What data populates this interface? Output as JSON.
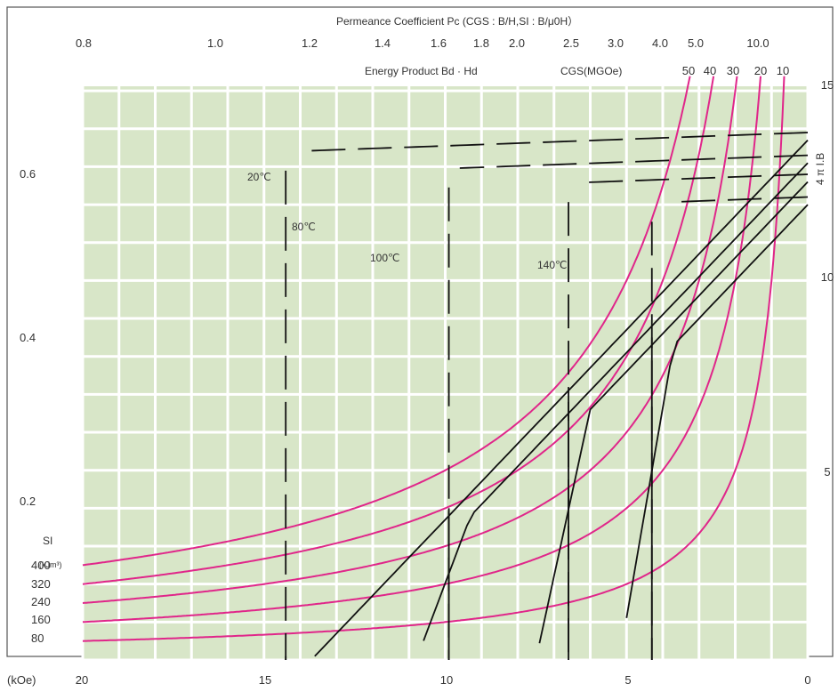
{
  "chart_data": {
    "type": "line",
    "title": "Permeance Coefficient Pc (CGS : B/H,SI : B/μ0H）",
    "subtitle": "Energy Product Bd · Hd",
    "xlabel": "(kOe)",
    "ylabel_right": "4 π I.B",
    "x_ticks": [
      "20",
      "15",
      "10",
      "5",
      "0"
    ],
    "x_range": [
      20,
      0
    ],
    "y_left_ticks": [
      "0.2",
      "0.4",
      "0.6"
    ],
    "y_right_ticks": [
      "5",
      "10",
      "15"
    ],
    "y_right_range": [
      0,
      15
    ],
    "permeance_ticks": [
      "0.8",
      "1.0",
      "1.2",
      "1.4",
      "1.6",
      "1.8",
      "2.0",
      "2.5",
      "3.0",
      "4.0",
      "5.0",
      "10.0"
    ],
    "energy_product_label": "CGS(MGOe)",
    "energy_product_ticks": [
      "50",
      "40",
      "30",
      "20",
      "10"
    ],
    "si_label": "SI",
    "si_unit": "(kJm³)",
    "si_values": [
      "400",
      "320",
      "240",
      "160",
      "80"
    ],
    "temperatures": [
      "20℃",
      "80℃",
      "100℃",
      "140℃"
    ],
    "iso_energy_curves_mgoe": [
      50,
      40,
      30,
      20,
      10
    ],
    "demag_curves": [
      {
        "temperature": "20℃",
        "knee_kOe": 14.4,
        "Br_kG": 13.7
      },
      {
        "temperature": "80℃",
        "knee_kOe": 9.9,
        "Br_kG": 13.1
      },
      {
        "temperature": "100℃",
        "knee_kOe": 6.6,
        "Br_kG": 12.6
      },
      {
        "temperature": "140℃",
        "knee_kOe": 4.3,
        "Br_kG": 12.0
      }
    ],
    "grid": true
  }
}
